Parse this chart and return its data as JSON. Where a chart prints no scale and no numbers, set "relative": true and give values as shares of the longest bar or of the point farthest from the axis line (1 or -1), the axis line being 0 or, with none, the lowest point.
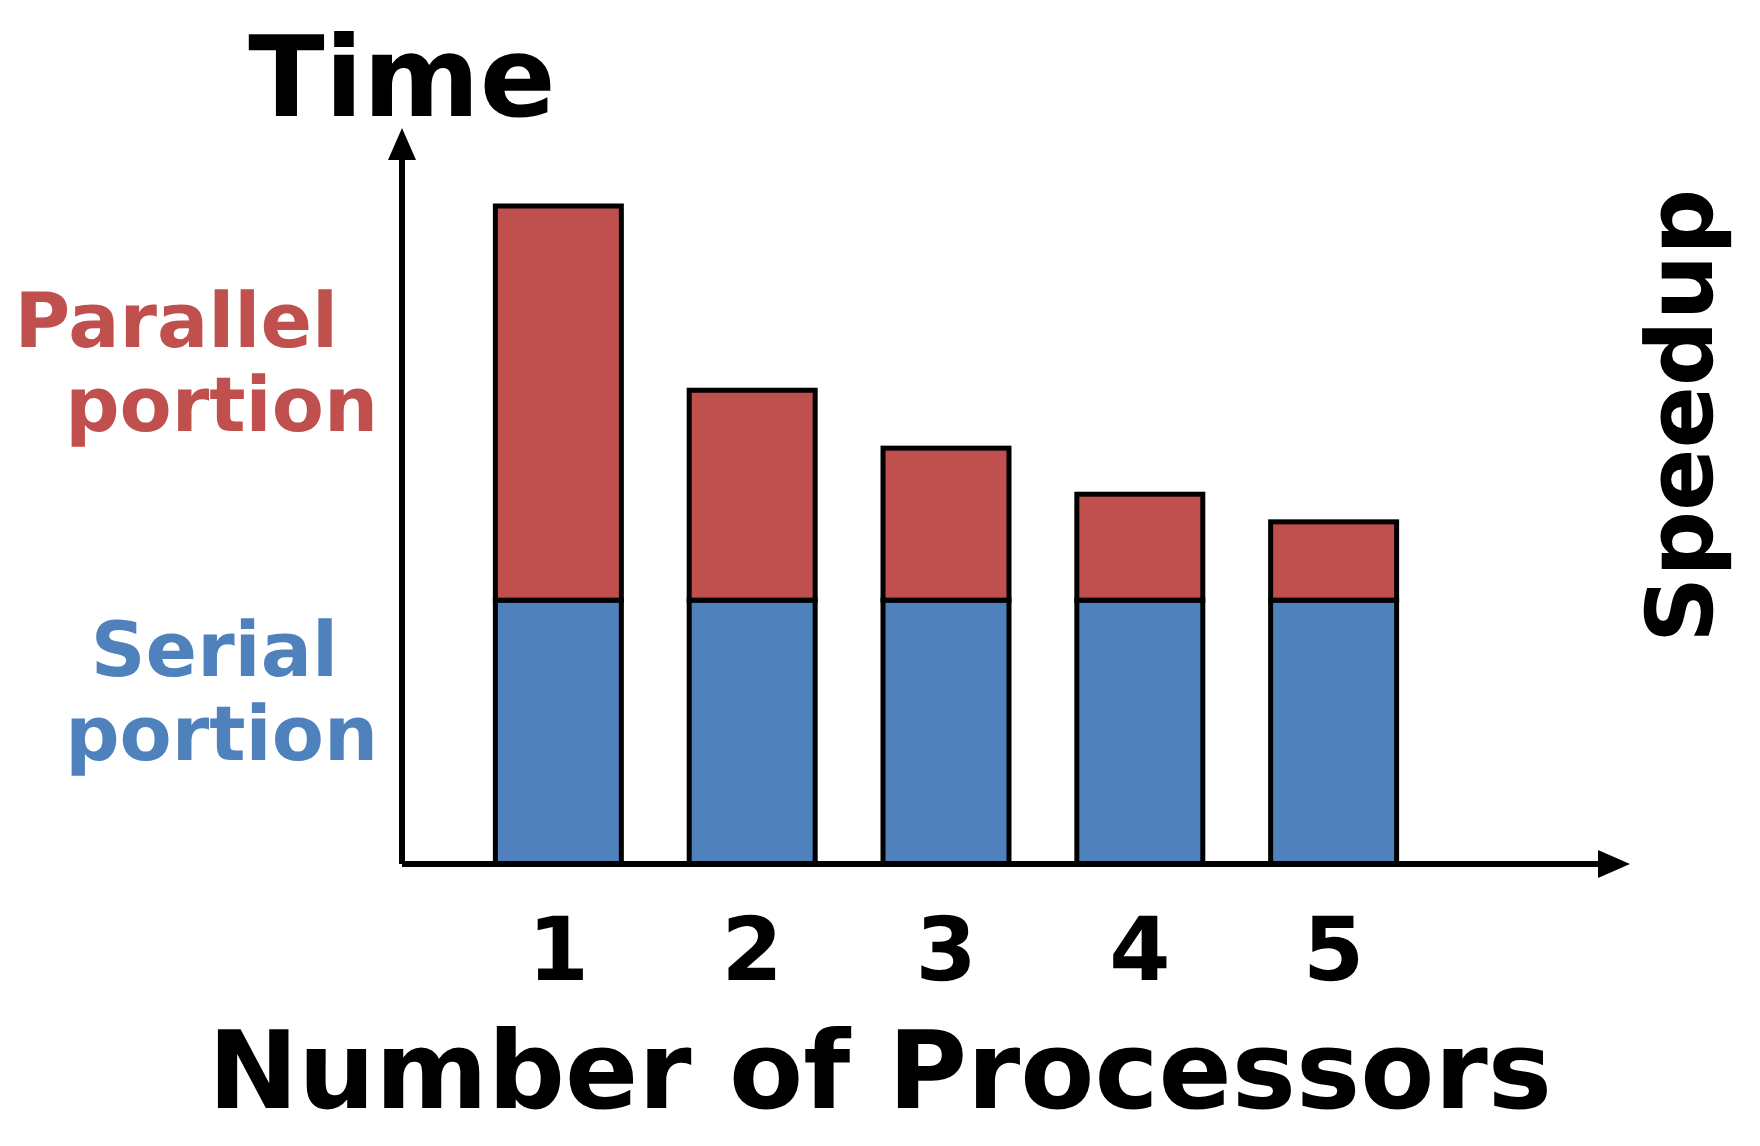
{
  "chart_data": {
    "type": "bar",
    "stacked": true,
    "relative": true,
    "xlabel": "Number of Processors",
    "ylabel": "Time",
    "annotations": [
      "Speedup"
    ],
    "categories": [
      "1",
      "2",
      "3",
      "4",
      "5"
    ],
    "series": [
      {
        "name": "Serial portion",
        "color": "#4f81bd",
        "values": [
          0.401,
          0.401,
          0.401,
          0.401,
          0.401
        ]
      },
      {
        "name": "Parallel portion",
        "color": "#c0504d",
        "values": [
          0.599,
          0.319,
          0.231,
          0.161,
          0.119
        ]
      }
    ]
  }
}
